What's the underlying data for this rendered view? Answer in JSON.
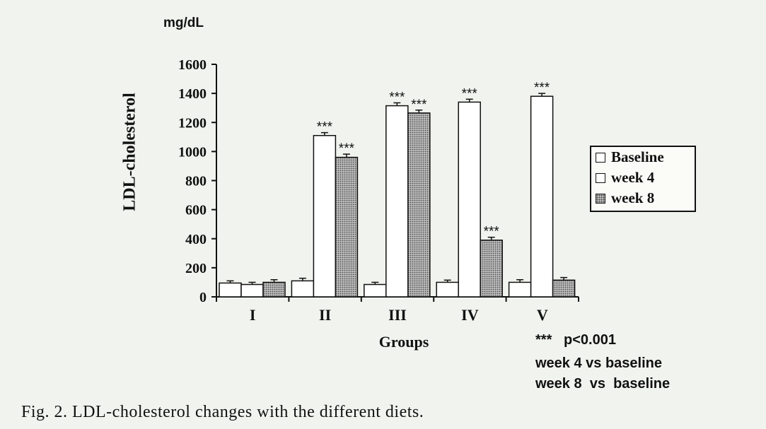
{
  "chart_data": {
    "type": "bar",
    "unit": "mg/dL",
    "ylabel": "LDL-cholesterol",
    "xlabel": "Groups",
    "ylim": [
      0,
      1600
    ],
    "yticks": [
      0,
      200,
      400,
      600,
      800,
      1000,
      1200,
      1400,
      1600
    ],
    "categories": [
      "I",
      "II",
      "III",
      "IV",
      "V"
    ],
    "series": [
      {
        "name": "Baseline",
        "values": [
          95,
          110,
          85,
          100,
          100
        ],
        "errors": [
          15,
          18,
          15,
          15,
          18
        ],
        "significance": [
          "",
          "",
          "",
          "",
          ""
        ],
        "color": "#ffffff",
        "pattern": "none"
      },
      {
        "name": "week 4",
        "values": [
          85,
          1110,
          1315,
          1340,
          1380
        ],
        "errors": [
          15,
          20,
          20,
          20,
          20
        ],
        "significance": [
          "",
          "***",
          "***",
          "***",
          "***"
        ],
        "color": "#ffffff",
        "pattern": "none"
      },
      {
        "name": "week 8",
        "values": [
          100,
          960,
          1265,
          390,
          115
        ],
        "errors": [
          18,
          22,
          20,
          20,
          18
        ],
        "significance": [
          "",
          "***",
          "***",
          "***",
          ""
        ],
        "color": "#bdbdbd",
        "pattern": "dotted"
      }
    ],
    "legend_position": "right",
    "grid": false
  },
  "notes": {
    "line1": "***   p<0.001",
    "line2": "week 4 vs baseline",
    "line3": "week 8  vs  baseline"
  },
  "caption": "Fig. 2.   LDL-cholesterol changes with the different diets."
}
